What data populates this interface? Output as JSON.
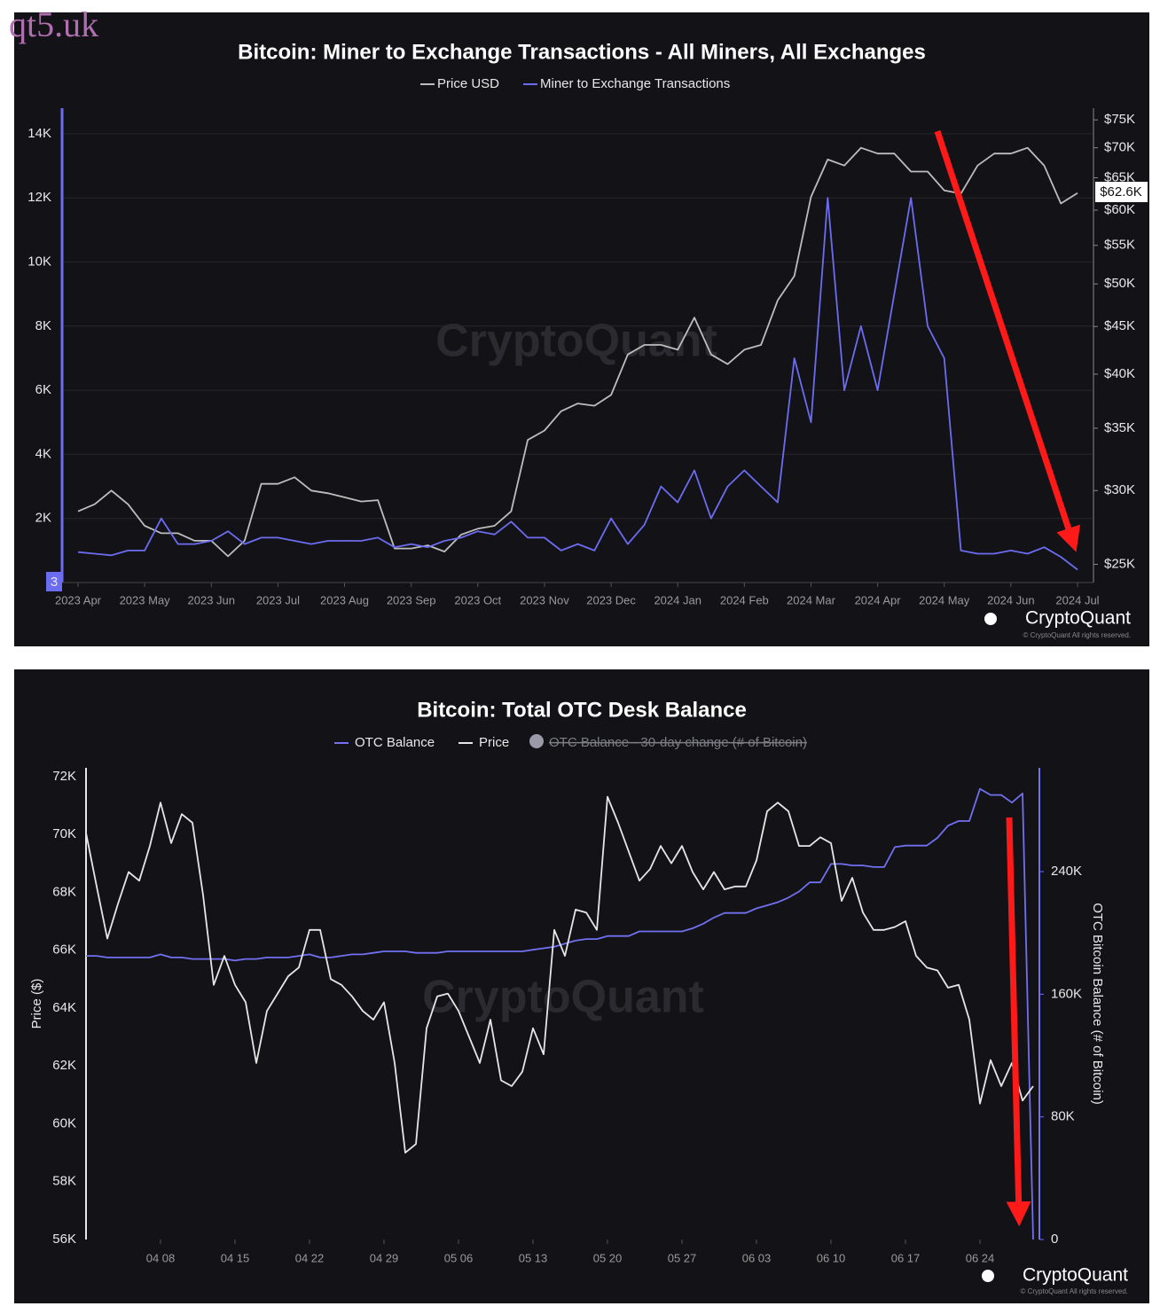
{
  "overlay_text": "qt5.uk",
  "chart_data": [
    {
      "type": "line",
      "title": "Bitcoin: Miner to Exchange Transactions - All Miners, All Exchanges",
      "categories": [
        "2023 Apr",
        null,
        null,
        null,
        "2023 May",
        null,
        null,
        null,
        "2023 Jun",
        null,
        null,
        null,
        "2023 Jul",
        null,
        null,
        null,
        "2023 Aug",
        null,
        null,
        null,
        "2023 Sep",
        null,
        null,
        null,
        "2023 Oct",
        null,
        null,
        null,
        "2023 Nov",
        null,
        null,
        null,
        "2023 Dec",
        null,
        null,
        null,
        "2024 Jan",
        null,
        null,
        null,
        "2024 Feb",
        null,
        null,
        null,
        "2024 Mar",
        null,
        null,
        null,
        "2024 Apr",
        null,
        null,
        null,
        "2024 May",
        null,
        null,
        null,
        "2024 Jun",
        null,
        null,
        null,
        "2024 Jul"
      ],
      "series": [
        {
          "name": "Price USD",
          "color": "#bdbdbd",
          "axis": "y2",
          "values": [
            28500,
            29000,
            30000,
            29000,
            27500,
            27000,
            27000,
            26500,
            26500,
            25500,
            26500,
            30500,
            30500,
            31000,
            30000,
            29800,
            29500,
            29200,
            29300,
            26000,
            26000,
            26200,
            25800,
            26900,
            27300,
            27500,
            28500,
            34000,
            34800,
            36500,
            37200,
            37000,
            38000,
            42000,
            43000,
            43000,
            42500,
            46000,
            42000,
            41000,
            42500,
            43000,
            48000,
            51000,
            62000,
            68000,
            67000,
            70000,
            69000,
            69000,
            66000,
            66000,
            63000,
            62500,
            67000,
            69000,
            69000,
            70000,
            67000,
            61000,
            62600
          ]
        },
        {
          "name": "Miner to Exchange Transactions",
          "color": "#6c6cf0",
          "values": [
            950,
            900,
            850,
            1000,
            1000,
            2000,
            1200,
            1200,
            1300,
            1600,
            1200,
            1400,
            1400,
            1300,
            1200,
            1300,
            1300,
            1300,
            1400,
            1100,
            1200,
            1100,
            1300,
            1400,
            1600,
            1500,
            1900,
            1400,
            1400,
            1000,
            1200,
            1000,
            2000,
            1200,
            1800,
            3000,
            2500,
            3500,
            2000,
            3000,
            3500,
            3000,
            2500,
            7000,
            5000,
            12000,
            6000,
            8000,
            6000,
            9000,
            12000,
            8000,
            7000,
            1000,
            900,
            900,
            1000,
            900,
            1100,
            800,
            400
          ]
        }
      ],
      "ylim": [
        0,
        14800
      ],
      "yticks": [
        {
          "value": 2000,
          "label": "2K"
        },
        {
          "value": 4000,
          "label": "4K"
        },
        {
          "value": 6000,
          "label": "6K"
        },
        {
          "value": 8000,
          "label": "8K"
        },
        {
          "value": 10000,
          "label": "10K"
        },
        {
          "value": 12000,
          "label": "12K"
        },
        {
          "value": 14000,
          "label": "14K"
        }
      ],
      "y2lim": [
        23900,
        77200
      ],
      "y2_log": true,
      "y2ticks": [
        {
          "value": 25000,
          "label": "$25K"
        },
        {
          "value": 30000,
          "label": "$30K"
        },
        {
          "value": 35000,
          "label": "$35K"
        },
        {
          "value": 40000,
          "label": "$40K"
        },
        {
          "value": 45000,
          "label": "$45K"
        },
        {
          "value": 50000,
          "label": "$50K"
        },
        {
          "value": 55000,
          "label": "$55K"
        },
        {
          "value": 60000,
          "label": "$60K"
        },
        {
          "value": 65000,
          "label": "$65K"
        },
        {
          "value": 70000,
          "label": "$70K"
        },
        {
          "value": 75000,
          "label": "$75K"
        }
      ],
      "grid": true,
      "cursor_label": "3",
      "price_tag": "$62.6K",
      "watermark": "CryptoQuant",
      "logo": "CryptoQuant",
      "copyright": "© CryptoQuant All rights reserved."
    },
    {
      "type": "line",
      "title": "Bitcoin: Total OTC Desk Balance",
      "categories": [
        null,
        null,
        null,
        null,
        null,
        null,
        null,
        "04 08",
        null,
        null,
        null,
        null,
        null,
        null,
        "04 15",
        null,
        null,
        null,
        null,
        null,
        null,
        "04 22",
        null,
        null,
        null,
        null,
        null,
        null,
        "04 29",
        null,
        null,
        null,
        null,
        null,
        null,
        "05 06",
        null,
        null,
        null,
        null,
        null,
        null,
        "05 13",
        null,
        null,
        null,
        null,
        null,
        null,
        "05 20",
        null,
        null,
        null,
        null,
        null,
        null,
        "05 27",
        null,
        null,
        null,
        null,
        null,
        null,
        "06 03",
        null,
        null,
        null,
        null,
        null,
        null,
        "06 10",
        null,
        null,
        null,
        null,
        null,
        null,
        "06 17",
        null,
        null,
        null,
        null,
        null,
        null,
        "06 24",
        null,
        null,
        null,
        null,
        null
      ],
      "series": [
        {
          "name": "OTC Balance",
          "color": "#7070f0",
          "axis": "y2",
          "values": [
            185000,
            185000,
            184000,
            184000,
            184000,
            184000,
            184000,
            186000,
            184000,
            184000,
            183000,
            183000,
            183000,
            183000,
            182000,
            183000,
            183000,
            184000,
            184000,
            184000,
            185000,
            186000,
            184000,
            184000,
            185000,
            186000,
            186000,
            187000,
            188000,
            188000,
            188000,
            187000,
            187000,
            187000,
            188000,
            188000,
            188000,
            188000,
            188000,
            188000,
            188000,
            188000,
            189000,
            190000,
            191000,
            193000,
            195000,
            196000,
            196000,
            198000,
            198000,
            198000,
            201000,
            201000,
            201000,
            201000,
            201000,
            203000,
            206000,
            210000,
            213000,
            213000,
            213000,
            216000,
            218000,
            220000,
            223000,
            227000,
            233000,
            233000,
            245000,
            245000,
            244000,
            244000,
            243000,
            243000,
            256000,
            257000,
            257000,
            257000,
            262000,
            270000,
            273000,
            273000,
            294000,
            290000,
            290000,
            285000,
            291000,
            0
          ]
        },
        {
          "name": "Price",
          "color": "#e6e6e6",
          "values": [
            70050,
            68200,
            66400,
            67600,
            68700,
            68400,
            69600,
            71100,
            69700,
            70700,
            70400,
            67900,
            64800,
            65800,
            64800,
            64200,
            62100,
            63900,
            64500,
            65100,
            65400,
            66700,
            66700,
            65000,
            64800,
            64400,
            63900,
            63600,
            64200,
            62100,
            59000,
            59300,
            63300,
            64400,
            64500,
            63900,
            63000,
            62100,
            63600,
            61500,
            61300,
            61800,
            63300,
            62400,
            66700,
            65800,
            67400,
            67300,
            66700,
            71300,
            70400,
            69400,
            68400,
            68800,
            69600,
            69000,
            69600,
            68700,
            68100,
            68700,
            68100,
            68200,
            68200,
            69100,
            70800,
            71100,
            70800,
            69600,
            69600,
            69900,
            69700,
            67700,
            68500,
            67300,
            66700,
            66700,
            66800,
            67000,
            65800,
            65400,
            65300,
            64700,
            64800,
            63600,
            60700,
            62200,
            61300,
            62100,
            60800,
            61300
          ]
        }
      ],
      "legend_hidden": "OTC Balance - 30-day change (# of Bitcoin)",
      "ylabel": "Price ($)",
      "y2label": "OTC Bitcoin Balance (# of Bitcoin)",
      "ylim": [
        56000,
        72300
      ],
      "yticks": [
        {
          "value": 56000,
          "label": "56K"
        },
        {
          "value": 58000,
          "label": "58K"
        },
        {
          "value": 60000,
          "label": "60K"
        },
        {
          "value": 62000,
          "label": "62K"
        },
        {
          "value": 64000,
          "label": "64K"
        },
        {
          "value": 66000,
          "label": "66K"
        },
        {
          "value": 68000,
          "label": "68K"
        },
        {
          "value": 70000,
          "label": "70K"
        },
        {
          "value": 72000,
          "label": "72K"
        }
      ],
      "y2lim": [
        0,
        307700
      ],
      "y2ticks": [
        0,
        {
          "value": 80000,
          "label": "80K"
        },
        {
          "value": 160000,
          "label": "160K"
        },
        {
          "value": 240000,
          "label": "240K"
        }
      ],
      "grid": false,
      "watermark": "CryptoQuant",
      "logo": "CryptoQuant",
      "copyright": "© CryptoQuant All rights reserved."
    }
  ]
}
